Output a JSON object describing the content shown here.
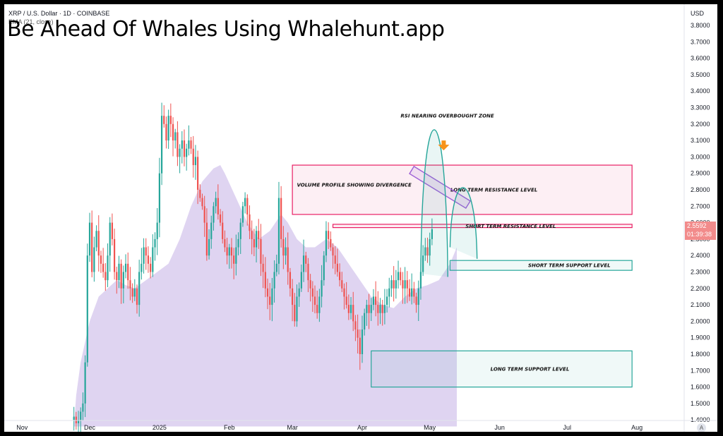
{
  "header": {
    "symbol_line": "XRP / U.S. Dollar · 1D · COINBASE",
    "indicator_line": "EMA (21, close)",
    "promo_text": "Be Ahead Of Whales Using Whalehunt.app",
    "currency": "USD"
  },
  "price_label": {
    "value": "2.5592",
    "countdown": "01:39:38",
    "color": "#f28b8b"
  },
  "auto_button": "A",
  "colors": {
    "up": "#26a69a",
    "down": "#ef5350",
    "volume_profile": "#d9ccee",
    "resistance": "#e91e63",
    "support": "#26a69a",
    "arrow": "#f7931a",
    "trendline": "#9c5fd6"
  },
  "chart_data": {
    "type": "candlestick",
    "title": "",
    "y_axis": {
      "min": 1.36,
      "max": 3.86,
      "ticks": [
        "3.8000",
        "3.7000",
        "3.6000",
        "3.5000",
        "3.4000",
        "3.3000",
        "3.2000",
        "3.1000",
        "3.0000",
        "2.9000",
        "2.8000",
        "2.7000",
        "2.6000",
        "2.5000",
        "2.4000",
        "2.3000",
        "2.2000",
        "2.1000",
        "2.0000",
        "1.9000",
        "1.8000",
        "1.7000",
        "1.6000",
        "1.5000",
        "1.4000"
      ]
    },
    "x_axis": {
      "labels": [
        {
          "text": "Nov",
          "day": -30
        },
        {
          "text": "Dec",
          "day": 0
        },
        {
          "text": "2025",
          "day": 31
        },
        {
          "text": "Feb",
          "day": 62
        },
        {
          "text": "Mar",
          "day": 90
        },
        {
          "text": "Apr",
          "day": 121
        },
        {
          "text": "May",
          "day": 151
        },
        {
          "text": "Jun",
          "day": 182
        },
        {
          "text": "Jul",
          "day": 212
        },
        {
          "text": "Aug",
          "day": 243
        }
      ]
    },
    "closes": [
      1.42,
      1.38,
      1.4,
      1.45,
      1.5,
      1.75,
      2.4,
      2.6,
      2.3,
      2.45,
      2.55,
      2.4,
      2.35,
      2.3,
      2.25,
      2.4,
      2.6,
      2.5,
      2.3,
      2.25,
      2.35,
      2.2,
      2.3,
      2.35,
      2.25,
      2.2,
      2.15,
      2.2,
      2.1,
      2.3,
      2.35,
      2.45,
      2.4,
      2.35,
      2.3,
      2.45,
      2.5,
      2.6,
      2.9,
      3.25,
      3.2,
      3.1,
      3.25,
      3.2,
      3.1,
      3.15,
      3.0,
      3.05,
      3.1,
      3.0,
      3.05,
      3.1,
      3.05,
      2.95,
      3.0,
      2.8,
      2.75,
      2.7,
      2.6,
      2.4,
      2.5,
      2.6,
      2.7,
      2.75,
      2.65,
      2.6,
      2.5,
      2.45,
      2.4,
      2.45,
      2.4,
      2.35,
      2.45,
      2.5,
      2.6,
      2.7,
      2.75,
      2.65,
      2.55,
      2.5,
      2.45,
      2.55,
      2.5,
      2.35,
      2.3,
      2.2,
      2.15,
      2.1,
      2.2,
      2.3,
      2.35,
      2.75,
      2.5,
      2.4,
      2.45,
      2.3,
      2.2,
      2.1,
      2.0,
      2.15,
      2.2,
      2.3,
      2.4,
      2.35,
      2.25,
      2.2,
      2.15,
      2.1,
      2.05,
      2.15,
      2.25,
      2.4,
      2.55,
      2.5,
      2.45,
      2.4,
      2.35,
      2.3,
      2.25,
      2.2,
      2.15,
      2.1,
      2.05,
      2.1,
      2.0,
      1.95,
      1.9,
      1.8,
      1.95,
      2.05,
      2.1,
      2.05,
      2.1,
      2.15,
      2.1,
      2.05,
      2.1,
      2.05,
      2.1,
      2.15,
      2.2,
      2.25,
      2.2,
      2.25,
      2.3,
      2.25,
      2.2,
      2.25,
      2.2,
      2.15,
      2.2,
      2.15,
      2.1,
      2.2,
      2.3,
      2.4,
      2.45,
      2.4,
      2.5,
      2.56
    ],
    "volume_profile_area": [
      [
        -7,
        1.36
      ],
      [
        -6,
        1.55
      ],
      [
        -4,
        1.75
      ],
      [
        0,
        2.0
      ],
      [
        4,
        2.15
      ],
      [
        8,
        2.2
      ],
      [
        12,
        2.25
      ],
      [
        16,
        2.22
      ],
      [
        20,
        2.2
      ],
      [
        25,
        2.25
      ],
      [
        30,
        2.3
      ],
      [
        35,
        2.35
      ],
      [
        40,
        2.5
      ],
      [
        45,
        2.7
      ],
      [
        50,
        2.85
      ],
      [
        55,
        2.93
      ],
      [
        58,
        2.95
      ],
      [
        60,
        2.9
      ],
      [
        65,
        2.75
      ],
      [
        70,
        2.6
      ],
      [
        75,
        2.5
      ],
      [
        80,
        2.55
      ],
      [
        85,
        2.65
      ],
      [
        88,
        2.6
      ],
      [
        92,
        2.5
      ],
      [
        96,
        2.45
      ],
      [
        100,
        2.45
      ],
      [
        105,
        2.5
      ],
      [
        110,
        2.45
      ],
      [
        115,
        2.35
      ],
      [
        120,
        2.25
      ],
      [
        125,
        2.15
      ],
      [
        130,
        2.1
      ],
      [
        135,
        2.08
      ],
      [
        140,
        2.15
      ],
      [
        145,
        2.2
      ],
      [
        150,
        2.22
      ],
      [
        155,
        2.25
      ],
      [
        160,
        2.35
      ],
      [
        163,
        2.45
      ],
      [
        163,
        1.36
      ]
    ],
    "zones": [
      {
        "name": "long-term-resistance",
        "label": "LONG TERM RESISTANCE LEVEL",
        "y_low": 2.65,
        "y_high": 2.95,
        "day_start": 90,
        "day_end": 243,
        "kind": "resistance"
      },
      {
        "name": "short-term-resistance",
        "label": "SHORT TERM RESISTANCE LEVEL",
        "y_low": 2.57,
        "y_high": 2.59,
        "day_start": 108,
        "day_end": 243,
        "kind": "resistance"
      },
      {
        "name": "short-term-support",
        "label": "SHORT TERM SUPPORT LEVEL",
        "y_low": 2.31,
        "y_high": 2.37,
        "day_start": 160,
        "day_end": 243,
        "kind": "support"
      },
      {
        "name": "long-term-support",
        "label": "LONG TERM SUPPORT LEVEL",
        "y_low": 1.6,
        "y_high": 1.82,
        "day_start": 125,
        "day_end": 243,
        "kind": "support"
      }
    ],
    "annotations": [
      {
        "name": "rsi-note",
        "text": "RSI NEARING OVERBOUGHT ZONE",
        "day": 160,
        "y": 3.24
      },
      {
        "name": "volume-profile-note",
        "text": "VOLUME PROFILE SHOWING DIVERGENCE",
        "day": 92,
        "y": 2.82
      }
    ],
    "arrow": {
      "day": 160,
      "y": 3.04
    },
    "trend_channel": {
      "start": [
        143,
        2.92
      ],
      "end": [
        168,
        2.71
      ]
    },
    "arcs": [
      {
        "start": [
          147,
          2.29
        ],
        "peak": [
          153,
          2.87
        ],
        "end": [
          159,
          2.27
        ]
      },
      {
        "start": [
          160,
          2.45
        ],
        "peak": [
          166,
          2.68
        ],
        "end": [
          172,
          2.38
        ]
      }
    ]
  }
}
